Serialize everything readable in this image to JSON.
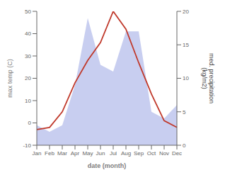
{
  "chart_data": {
    "type": "line",
    "categories": [
      "Jan",
      "Feb",
      "Mar",
      "Apr",
      "May",
      "Jun",
      "Jul",
      "Aug",
      "Sep",
      "Oct",
      "Nov",
      "Dec"
    ],
    "series": [
      {
        "type": "area",
        "axis": "y2",
        "color": "#aab4e8",
        "values": [
          3,
          2,
          3,
          9,
          19,
          12,
          11,
          17,
          17,
          5,
          4,
          6
        ]
      },
      {
        "type": "line",
        "color": "#c0392b",
        "values": [
          -3,
          -2,
          5,
          18,
          28,
          36,
          50,
          42,
          27,
          13,
          1,
          -2
        ]
      }
    ],
    "x_label": "date (month)",
    "y_label": "max temp (C)",
    "y2_label": "med. precipitation\n(kg/m2)",
    "ylim": [
      -10,
      50
    ],
    "yticks": [
      -10,
      0,
      10,
      20,
      30,
      40,
      50
    ],
    "y2lim": [
      0,
      20
    ],
    "y2ticks": [
      0,
      5,
      10,
      15,
      20
    ],
    "grid": false
  }
}
